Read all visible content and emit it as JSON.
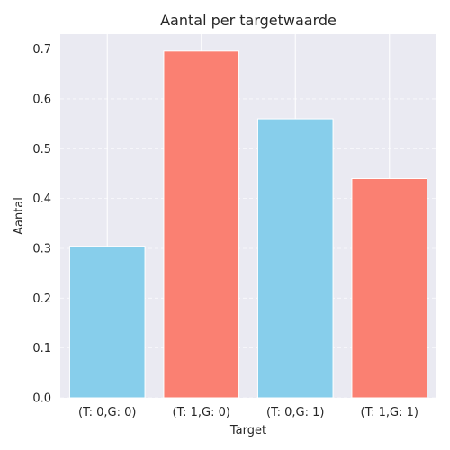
{
  "chart_data": {
    "type": "bar",
    "title": "Aantal per targetwaarde",
    "xlabel": "Target",
    "ylabel": "Aantal",
    "categories": [
      "(T: 0,G: 0)",
      "(T: 1,G: 0)",
      "(T: 0,G: 1)",
      "(T: 1,G: 1)"
    ],
    "values": [
      0.304,
      0.696,
      0.56,
      0.44
    ],
    "bar_colors": [
      "#87CEEB",
      "#FA8072",
      "#87CEEB",
      "#FA8072"
    ],
    "ylim": [
      0,
      0.73
    ],
    "yticks": [
      "0.0",
      "0.1",
      "0.2",
      "0.3",
      "0.4",
      "0.5",
      "0.6",
      "0.7"
    ],
    "ytick_values": [
      0,
      0.1,
      0.2,
      0.3,
      0.4,
      0.5,
      0.6,
      0.7
    ],
    "grid": true,
    "background": "#EAEAF2"
  }
}
